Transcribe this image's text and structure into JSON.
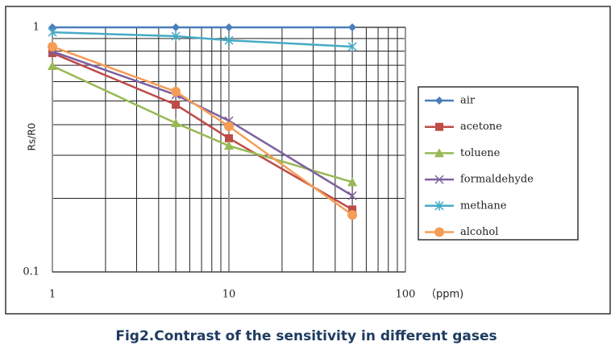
{
  "chart_data": {
    "type": "line",
    "caption": "Fig2.Contrast of the sensitivity in different gases",
    "y_label": "Rs/R0",
    "x_label": "（ppm)",
    "log_x": true,
    "log_y": true,
    "grid": true,
    "x": [
      1,
      5,
      10,
      50
    ],
    "xlim": [
      1,
      100
    ],
    "xticks": [
      1,
      10,
      100
    ],
    "x_minor_ticks": [
      2,
      3,
      4,
      5,
      6,
      7,
      8,
      9,
      20,
      30,
      40,
      50,
      60,
      70,
      80,
      90
    ],
    "ylim": [
      0.1,
      1
    ],
    "yticks": [
      0.1,
      1
    ],
    "y_minor_ticks": [
      0.2,
      0.3,
      0.4,
      0.5,
      0.6,
      0.7,
      0.8,
      0.9
    ],
    "series": [
      {
        "name": "air",
        "color": "#4a7ebb",
        "marker": "diamond",
        "values": [
          1,
          1,
          1,
          1
        ]
      },
      {
        "name": "acetone",
        "color": "#be4b48",
        "marker": "square",
        "values": [
          0.785,
          0.483,
          0.352,
          0.18
        ]
      },
      {
        "name": "toluene",
        "color": "#98b954",
        "marker": "triangle",
        "values": [
          0.695,
          0.406,
          0.328,
          0.233
        ]
      },
      {
        "name": "formaldehyde",
        "color": "#7d60a0",
        "marker": "x",
        "values": [
          0.797,
          0.53,
          0.415,
          0.205
        ]
      },
      {
        "name": "methane",
        "color": "#46aac5",
        "marker": "star",
        "values": [
          0.955,
          0.92,
          0.885,
          0.834
        ]
      },
      {
        "name": "alcohol",
        "color": "#f59d56",
        "marker": "circle",
        "values": [
          0.834,
          0.546,
          0.394,
          0.171
        ]
      }
    ]
  }
}
